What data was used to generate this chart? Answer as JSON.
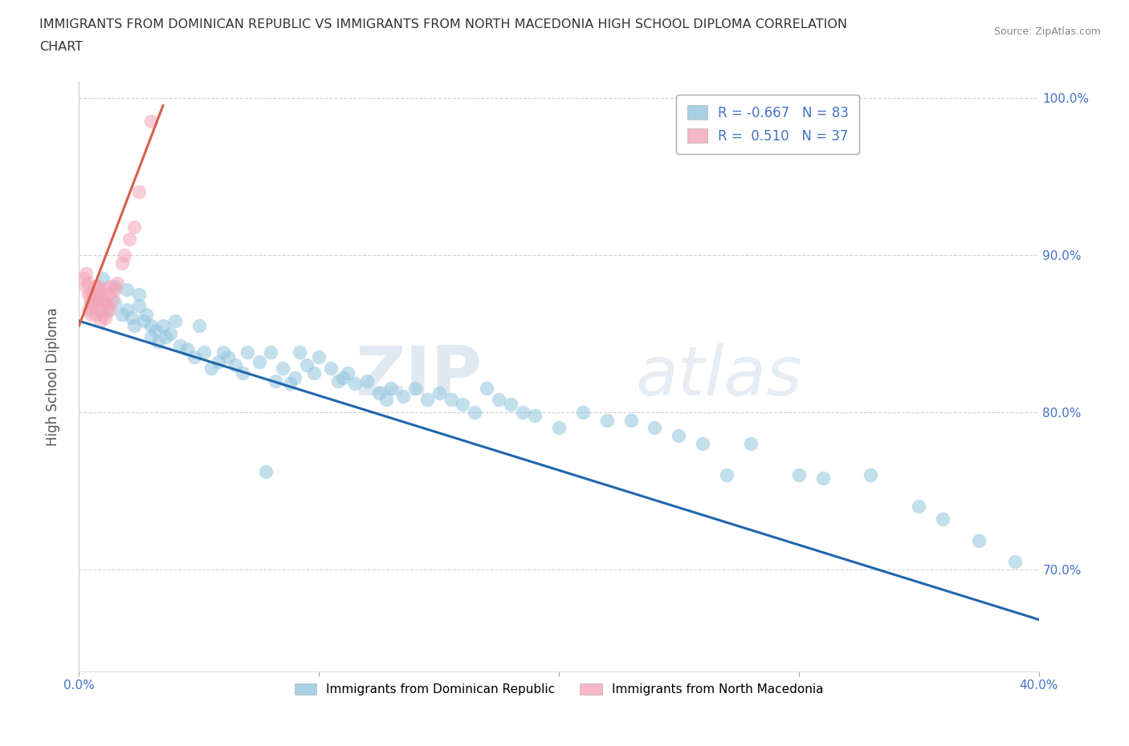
{
  "title_line1": "IMMIGRANTS FROM DOMINICAN REPUBLIC VS IMMIGRANTS FROM NORTH MACEDONIA HIGH SCHOOL DIPLOMA CORRELATION",
  "title_line2": "CHART",
  "source": "Source: ZipAtlas.com",
  "ylabel": "High School Diploma",
  "xlim": [
    0.0,
    0.4
  ],
  "ylim": [
    0.635,
    1.01
  ],
  "xticks": [
    0.0,
    0.1,
    0.2,
    0.3,
    0.4
  ],
  "yticks": [
    0.7,
    0.8,
    0.9,
    1.0
  ],
  "ytick_labels": [
    "70.0%",
    "80.0%",
    "90.0%",
    "100.0%"
  ],
  "legend_blue_label": "Immigrants from Dominican Republic",
  "legend_pink_label": "Immigrants from North Macedonia",
  "blue_color": "#92c5de",
  "blue_line_color": "#2166ac",
  "pink_color": "#f4a5b8",
  "pink_line_color": "#d6604d",
  "watermark_zip": "ZIP",
  "watermark_atlas": "atlas",
  "blue_scatter_x": [
    0.005,
    0.008,
    0.01,
    0.012,
    0.015,
    0.015,
    0.018,
    0.02,
    0.02,
    0.022,
    0.023,
    0.025,
    0.025,
    0.027,
    0.028,
    0.03,
    0.03,
    0.032,
    0.033,
    0.035,
    0.036,
    0.038,
    0.04,
    0.042,
    0.045,
    0.048,
    0.05,
    0.052,
    0.055,
    0.058,
    0.06,
    0.062,
    0.065,
    0.068,
    0.07,
    0.075,
    0.078,
    0.08,
    0.082,
    0.085,
    0.088,
    0.09,
    0.092,
    0.095,
    0.098,
    0.1,
    0.105,
    0.108,
    0.11,
    0.112,
    0.115,
    0.12,
    0.125,
    0.128,
    0.13,
    0.135,
    0.14,
    0.145,
    0.15,
    0.155,
    0.16,
    0.165,
    0.17,
    0.175,
    0.18,
    0.185,
    0.19,
    0.2,
    0.21,
    0.22,
    0.23,
    0.24,
    0.25,
    0.26,
    0.27,
    0.28,
    0.3,
    0.31,
    0.33,
    0.35,
    0.36,
    0.375,
    0.39
  ],
  "blue_scatter_y": [
    0.87,
    0.875,
    0.885,
    0.865,
    0.88,
    0.87,
    0.862,
    0.878,
    0.865,
    0.86,
    0.855,
    0.875,
    0.868,
    0.858,
    0.862,
    0.855,
    0.848,
    0.852,
    0.845,
    0.855,
    0.848,
    0.85,
    0.858,
    0.842,
    0.84,
    0.835,
    0.855,
    0.838,
    0.828,
    0.832,
    0.838,
    0.835,
    0.83,
    0.825,
    0.838,
    0.832,
    0.762,
    0.838,
    0.82,
    0.828,
    0.818,
    0.822,
    0.838,
    0.83,
    0.825,
    0.835,
    0.828,
    0.82,
    0.822,
    0.825,
    0.818,
    0.82,
    0.812,
    0.808,
    0.815,
    0.81,
    0.815,
    0.808,
    0.812,
    0.808,
    0.805,
    0.8,
    0.815,
    0.808,
    0.805,
    0.8,
    0.798,
    0.79,
    0.8,
    0.795,
    0.795,
    0.79,
    0.785,
    0.78,
    0.76,
    0.78,
    0.76,
    0.758,
    0.76,
    0.74,
    0.732,
    0.718,
    0.705
  ],
  "pink_scatter_x": [
    0.002,
    0.003,
    0.003,
    0.004,
    0.004,
    0.004,
    0.005,
    0.005,
    0.005,
    0.006,
    0.006,
    0.007,
    0.007,
    0.007,
    0.008,
    0.008,
    0.008,
    0.009,
    0.009,
    0.01,
    0.01,
    0.01,
    0.011,
    0.011,
    0.012,
    0.012,
    0.013,
    0.013,
    0.014,
    0.015,
    0.016,
    0.018,
    0.019,
    0.021,
    0.023,
    0.025,
    0.03
  ],
  "pink_scatter_y": [
    0.885,
    0.888,
    0.88,
    0.875,
    0.882,
    0.865,
    0.875,
    0.87,
    0.862,
    0.875,
    0.868,
    0.87,
    0.88,
    0.862,
    0.872,
    0.88,
    0.865,
    0.875,
    0.858,
    0.872,
    0.862,
    0.878,
    0.87,
    0.86,
    0.868,
    0.875,
    0.88,
    0.865,
    0.872,
    0.878,
    0.882,
    0.895,
    0.9,
    0.91,
    0.918,
    0.94,
    0.985
  ],
  "blue_line_x": [
    0.0,
    0.4
  ],
  "blue_line_y": [
    0.858,
    0.668
  ],
  "pink_line_x": [
    0.0,
    0.035
  ],
  "pink_line_y": [
    0.855,
    0.995
  ]
}
